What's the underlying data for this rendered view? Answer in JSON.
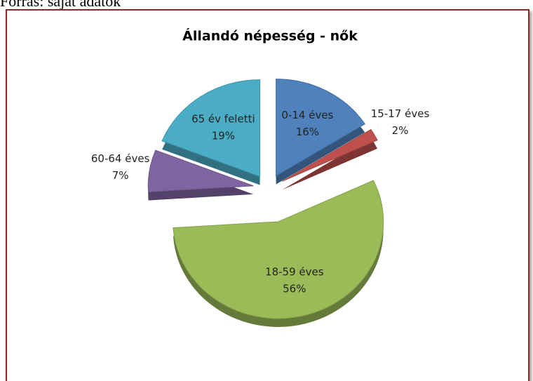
{
  "source": "Forrás: saját adatok",
  "chart_data": {
    "type": "pie",
    "title": "Állandó népesség - nők",
    "categories": [
      "0-14 éves",
      "15-17 éves",
      "18-59 éves",
      "60-64 éves",
      "65 év feletti"
    ],
    "values": [
      16,
      2,
      56,
      7,
      19
    ],
    "value_labels": [
      "16%",
      "2%",
      "56%",
      "7%",
      "19%"
    ],
    "colors": [
      "#4f81bd",
      "#c0504d",
      "#9bbb59",
      "#8064a2",
      "#4bacc6"
    ]
  }
}
